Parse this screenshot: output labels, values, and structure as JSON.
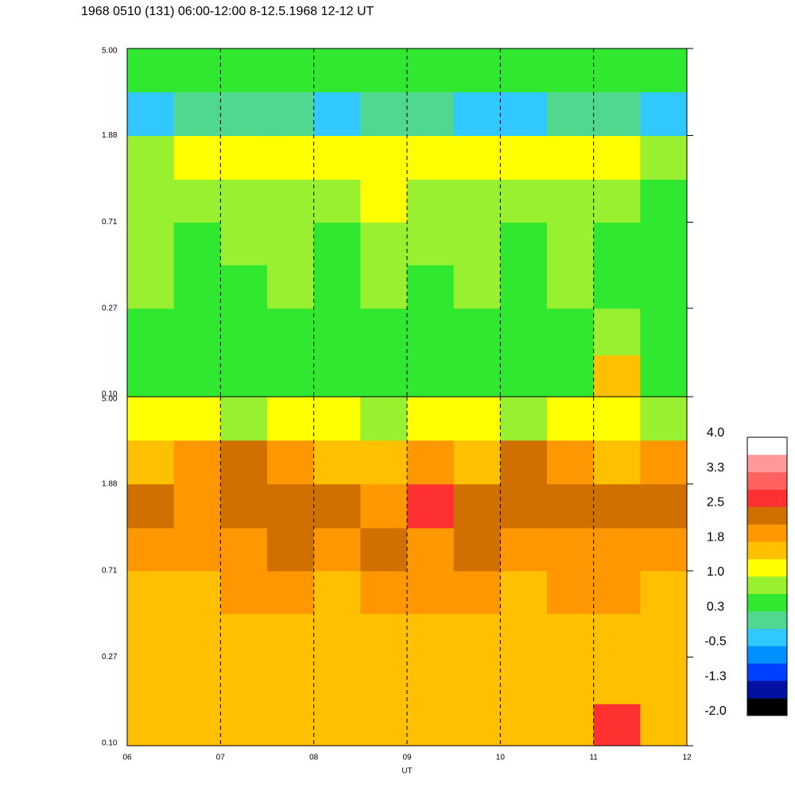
{
  "chart_data": {
    "type": "heatmap",
    "title": "1968 0510 (131) 06:00-12:00 8-12.5.1968  12-12 UT",
    "xlabel": "UT",
    "xlim": [
      6,
      12
    ],
    "xticks": [
      {
        "value": 6,
        "label": "06"
      },
      {
        "value": 7,
        "label": "07"
      },
      {
        "value": 8,
        "label": "08"
      },
      {
        "value": 9,
        "label": "09"
      },
      {
        "value": 10,
        "label": "10"
      },
      {
        "value": 11,
        "label": "11"
      },
      {
        "value": 12,
        "label": "12"
      }
    ],
    "grid": true,
    "log_y": true,
    "time_bins": [
      6,
      6.5,
      7,
      7.5,
      8,
      8.5,
      9,
      9.5,
      10,
      10.5,
      11,
      11.5,
      12
    ],
    "freq_bins": [
      0.1,
      0.16,
      0.27,
      0.44,
      0.71,
      1.15,
      1.88,
      3.07,
      5.0
    ],
    "panels": [
      {
        "ylim": [
          0.1,
          5
        ],
        "yticks": [
          {
            "value": 0.1,
            "label": "0.10"
          },
          {
            "value": 0.27,
            "label": "0.27"
          },
          {
            "value": 0.71,
            "label": "0.71"
          },
          {
            "value": 1.88,
            "label": "1.88"
          },
          {
            "value": 5,
            "label": "5.00"
          }
        ],
        "values": [
          [
            0.4,
            0.4,
            0.3,
            0.4,
            0.4,
            0.3,
            0.4,
            0.4,
            0.3,
            0.4,
            1.5,
            0.4
          ],
          [
            0.5,
            0.6,
            0.4,
            0.5,
            0.4,
            0.5,
            0.6,
            0.5,
            0.4,
            0.5,
            0.7,
            0.4
          ],
          [
            0.7,
            0.6,
            0.5,
            0.7,
            0.6,
            0.7,
            0.5,
            0.7,
            0.6,
            0.7,
            0.5,
            0.5
          ],
          [
            0.7,
            0.5,
            0.7,
            0.8,
            0.6,
            0.7,
            0.8,
            0.7,
            0.5,
            0.8,
            0.6,
            0.5
          ],
          [
            0.8,
            0.7,
            0.9,
            0.9,
            0.7,
            1.0,
            0.8,
            0.9,
            0.7,
            0.9,
            0.8,
            0.6
          ],
          [
            0.9,
            1.1,
            1.1,
            1.2,
            1.0,
            1.2,
            1.1,
            1.2,
            1.0,
            1.1,
            1.1,
            0.9
          ],
          [
            -0.3,
            0.0,
            0.2,
            -0.1,
            -0.3,
            0.1,
            0.2,
            -0.2,
            -0.3,
            0.1,
            -0.1,
            -0.3
          ],
          [
            0.5,
            0.3,
            0.4,
            0.5,
            0.3,
            0.4,
            0.5,
            0.3,
            0.4,
            0.5,
            0.4,
            0.3
          ]
        ]
      },
      {
        "ylim": [
          0.1,
          5
        ],
        "yticks": [
          {
            "value": 0.1,
            "label": "0.10"
          },
          {
            "value": 0.27,
            "label": "0.27"
          },
          {
            "value": 0.71,
            "label": "0.71"
          },
          {
            "value": 1.88,
            "label": "1.88"
          },
          {
            "value": 5,
            "label": "5.00"
          }
        ],
        "values": [
          [
            1.6,
            1.7,
            1.6,
            1.6,
            1.7,
            1.6,
            1.6,
            1.7,
            1.6,
            1.6,
            2.6,
            1.5
          ],
          [
            1.6,
            1.6,
            1.7,
            1.6,
            1.6,
            1.7,
            1.6,
            1.6,
            1.7,
            1.6,
            1.7,
            1.6
          ],
          [
            1.5,
            1.6,
            1.6,
            1.5,
            1.6,
            1.5,
            1.6,
            1.5,
            1.6,
            1.6,
            1.5,
            1.6
          ],
          [
            1.7,
            1.6,
            1.8,
            1.9,
            1.7,
            2.0,
            1.8,
            1.9,
            1.7,
            1.9,
            1.8,
            1.6
          ],
          [
            2.1,
            1.9,
            2.0,
            2.2,
            1.9,
            2.2,
            2.0,
            2.2,
            1.9,
            2.1,
            2.0,
            2.1
          ],
          [
            2.2,
            2.0,
            2.3,
            2.4,
            2.2,
            2.1,
            2.6,
            2.3,
            2.2,
            2.3,
            2.2,
            2.3
          ],
          [
            1.6,
            1.8,
            2.2,
            1.8,
            1.7,
            1.6,
            1.9,
            1.7,
            2.2,
            1.8,
            1.7,
            1.8
          ],
          [
            1.0,
            1.1,
            0.9,
            1.0,
            1.1,
            0.9,
            1.0,
            1.1,
            0.9,
            1.0,
            1.1,
            0.9
          ]
        ]
      }
    ],
    "colorbar": {
      "clim": [
        -2,
        4
      ],
      "colors": [
        "#000000",
        "#0010a0",
        "#0040ff",
        "#0090ff",
        "#30c8ff",
        "#50d890",
        "#30e830",
        "#98f030",
        "#ffff00",
        "#ffc000",
        "#ff9800",
        "#d07000",
        "#ff3030",
        "#ff6060",
        "#ff9898",
        "#ffffff"
      ],
      "ticks": [
        {
          "value": 4,
          "label": "4.0"
        },
        {
          "value": 3.25,
          "label": "3.3"
        },
        {
          "value": 2.5,
          "label": "2.5"
        },
        {
          "value": 1.75,
          "label": "1.8"
        },
        {
          "value": 1,
          "label": "1.0"
        },
        {
          "value": 0.25,
          "label": "0.3"
        },
        {
          "value": -0.5,
          "label": "-0.5"
        },
        {
          "value": -1.25,
          "label": "-1.3"
        },
        {
          "value": -2,
          "label": "-2.0"
        }
      ]
    }
  }
}
